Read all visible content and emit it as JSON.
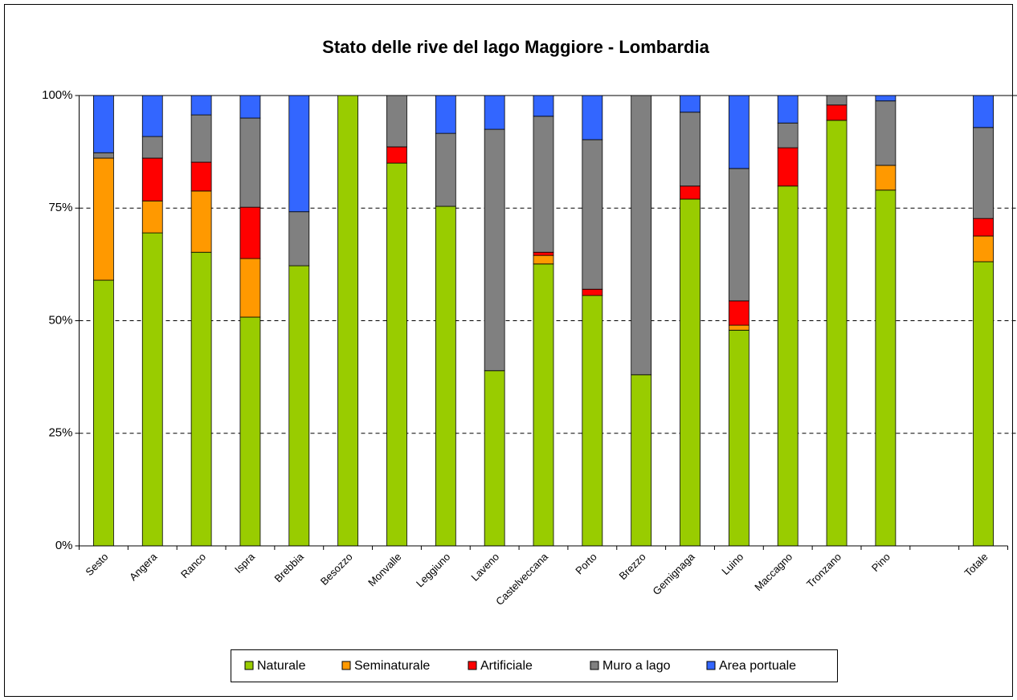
{
  "chart_data": {
    "type": "stacked_bar_100",
    "title": "Stato delle rive del lago Maggiore - Lombardia",
    "categories": [
      "Sesto",
      "Angera",
      "Ranco",
      "Ispra",
      "Brebbia",
      "Besozzo",
      "Monvalle",
      "Leggiuno",
      "Laveno",
      "Castelveccana",
      "Porto",
      "Brezzo",
      "Gemignaga",
      "Luino",
      "Maccagno",
      "Tronzano",
      "Pino",
      null,
      "Totale"
    ],
    "series": [
      {
        "name": "Naturale",
        "color": "#99cc00",
        "values": [
          59.0,
          69.5,
          65.2,
          50.8,
          62.2,
          100,
          85.0,
          75.4,
          38.9,
          62.6,
          55.6,
          38.0,
          77.0,
          47.9,
          79.9,
          94.5,
          79.0,
          null,
          63.1
        ]
      },
      {
        "name": "Seminaturale",
        "color": "#ff9900",
        "values": [
          27.1,
          7.1,
          13.6,
          13.0,
          0,
          0,
          0,
          0,
          0,
          1.9,
          0,
          0,
          0,
          1.1,
          0,
          0,
          5.5,
          null,
          5.7
        ]
      },
      {
        "name": "Artificiale",
        "color": "#ff0000",
        "values": [
          0,
          9.5,
          6.4,
          11.4,
          0,
          0,
          3.6,
          0,
          0,
          0.7,
          1.4,
          0,
          2.9,
          5.4,
          8.5,
          3.4,
          0,
          null,
          3.9
        ]
      },
      {
        "name": "Muro a lago",
        "color": "#808080",
        "values": [
          1.2,
          4.8,
          10.5,
          19.8,
          12.0,
          0,
          11.4,
          16.2,
          53.6,
          30.2,
          33.2,
          62.0,
          16.4,
          29.4,
          5.5,
          2.1,
          14.3,
          null,
          20.2
        ]
      },
      {
        "name": "Area portuale",
        "color": "#3366ff",
        "values": [
          12.7,
          9.1,
          4.3,
          5.0,
          25.8,
          0,
          0,
          8.4,
          7.5,
          4.6,
          9.8,
          0,
          3.7,
          16.2,
          6.1,
          0,
          1.2,
          null,
          7.1
        ]
      }
    ],
    "ylim": [
      0,
      100
    ],
    "yticks": [
      {
        "value": 0,
        "label": "0%"
      },
      {
        "value": 25,
        "label": "25%"
      },
      {
        "value": 50,
        "label": "50%"
      },
      {
        "value": 75,
        "label": "75%"
      },
      {
        "value": 100,
        "label": "100%"
      }
    ],
    "grid": true,
    "legend": "bottom"
  }
}
